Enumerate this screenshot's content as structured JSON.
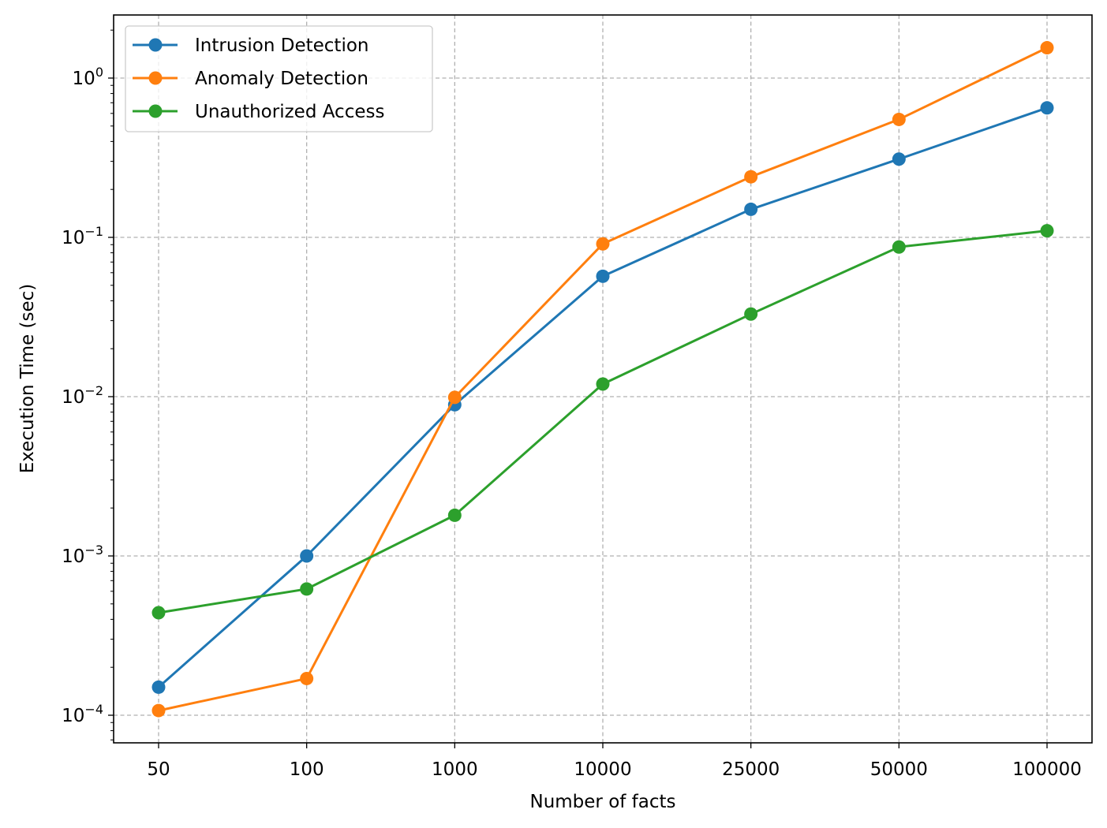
{
  "chart_data": {
    "type": "line",
    "title": "",
    "xlabel": "Number of facts",
    "ylabel": "Execution Time (sec)",
    "yscale": "log",
    "ylim": [
      6.65e-05,
      2.4
    ],
    "grid": true,
    "legend_position": "top-left",
    "categories": [
      "50",
      "100",
      "1000",
      "10000",
      "25000",
      "50000",
      "100000"
    ],
    "y_ticks": [
      {
        "value": 0.0001,
        "base": "10",
        "exp": "−4"
      },
      {
        "value": 0.001,
        "base": "10",
        "exp": "−3"
      },
      {
        "value": 0.01,
        "base": "10",
        "exp": "−2"
      },
      {
        "value": 0.1,
        "base": "10",
        "exp": "−1"
      },
      {
        "value": 1,
        "base": "10",
        "exp": "0"
      }
    ],
    "series": [
      {
        "name": "Intrusion Detection",
        "color": "#1f77b4",
        "values": [
          0.00015,
          0.001,
          0.0089,
          0.057,
          0.15,
          0.31,
          0.65
        ]
      },
      {
        "name": "Anomaly Detection",
        "color": "#ff7f0e",
        "values": [
          0.000107,
          0.00017,
          0.0099,
          0.091,
          0.24,
          0.55,
          1.55
        ]
      },
      {
        "name": "Unauthorized Access",
        "color": "#2ca02c",
        "values": [
          0.00044,
          0.00062,
          0.0018,
          0.012,
          0.033,
          0.087,
          0.11
        ]
      }
    ]
  }
}
